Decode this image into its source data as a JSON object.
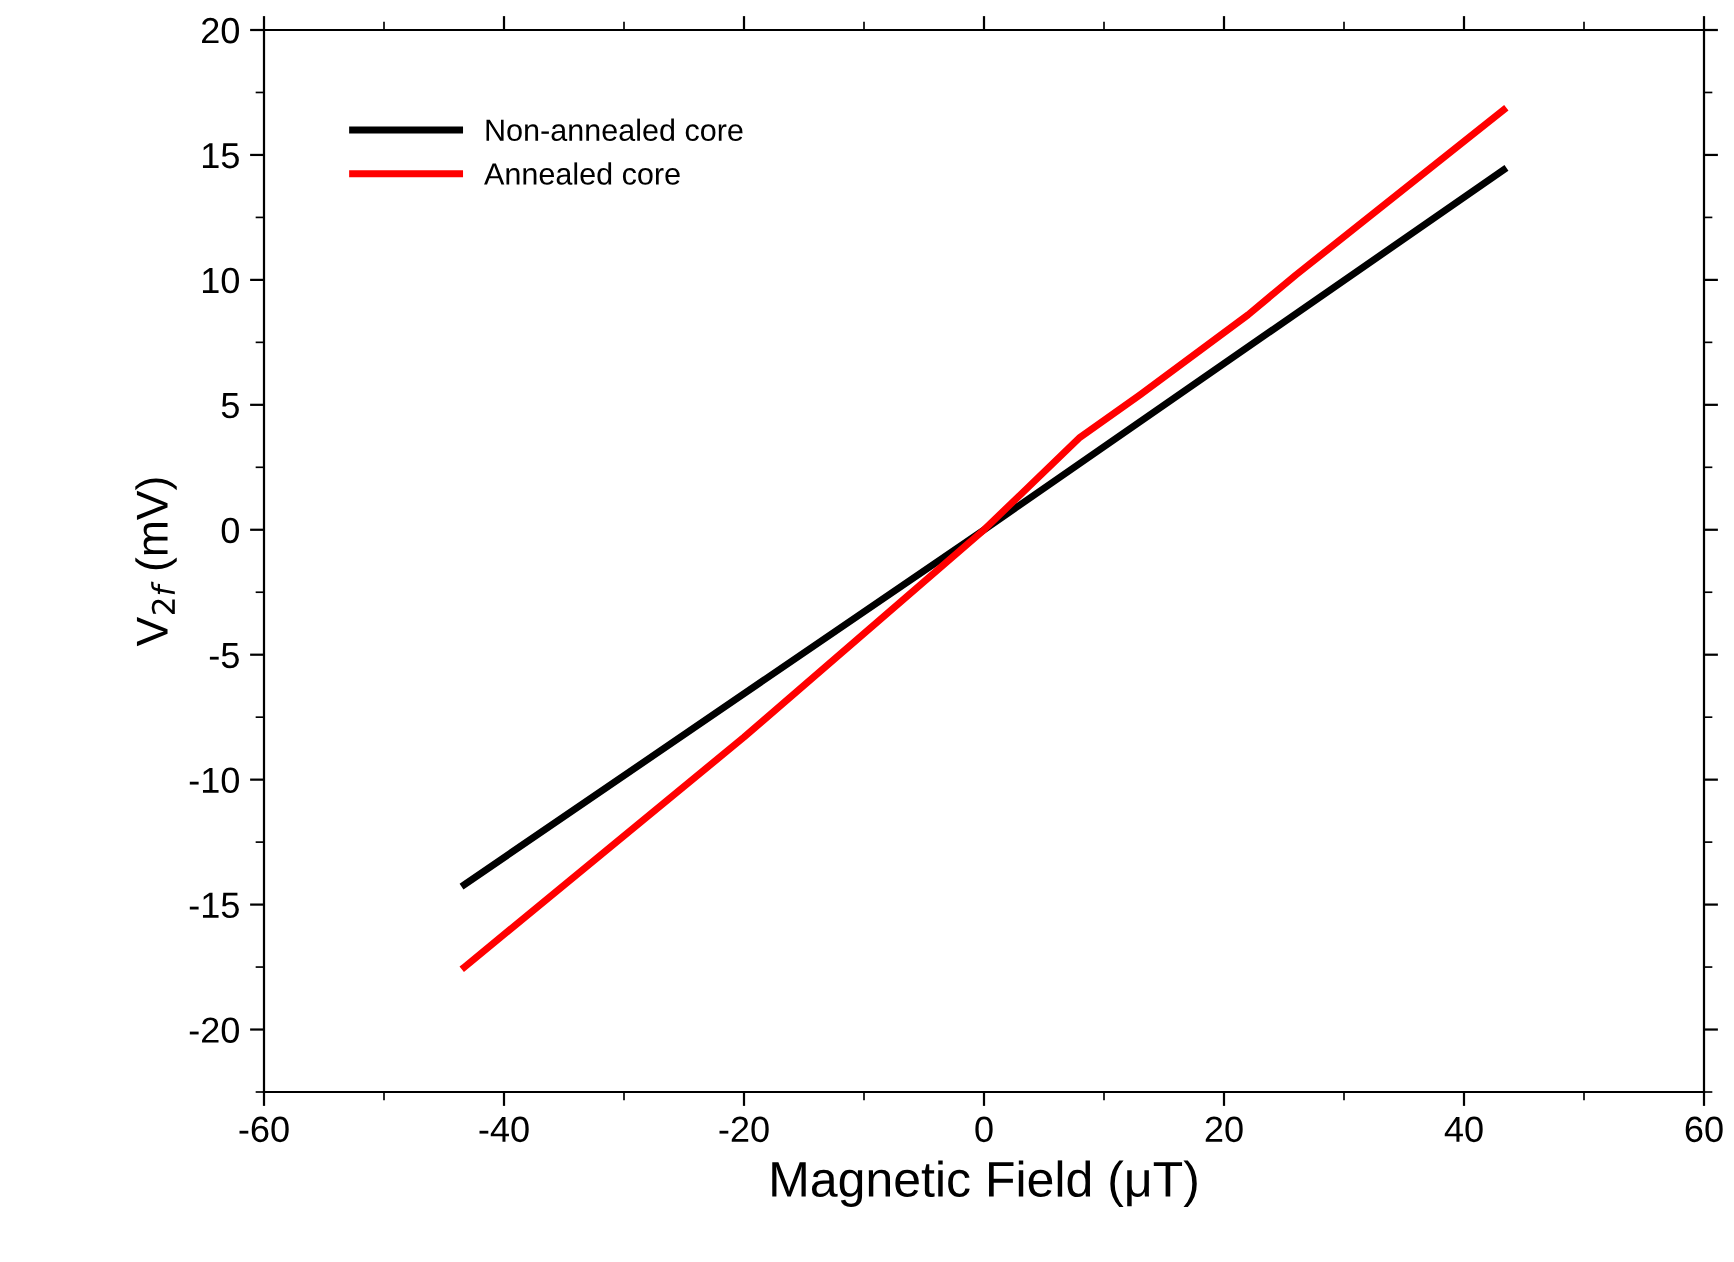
{
  "chart_data": {
    "type": "line",
    "xlabel": "Magnetic Field (μT)",
    "ylabel": "V$_{2f}$ (mV)",
    "xlim": [
      -60,
      60
    ],
    "xticks": [
      -60,
      -40,
      -20,
      0,
      20,
      40,
      60
    ],
    "ylim": [
      -22.5,
      20
    ],
    "yticks": [
      -20,
      -15,
      -10,
      -5,
      0,
      5,
      10,
      15,
      20
    ],
    "grid": false,
    "legend": "top left",
    "series": [
      {
        "name": "Non-annealed core",
        "color": "#000000",
        "x": [
          -43.3,
          0,
          43.3
        ],
        "values": [
          -14.2,
          0,
          14.4
        ]
      },
      {
        "name": "Annealed core",
        "color": "#ff0000",
        "x": [
          -43.3,
          -20,
          0,
          8,
          13,
          22,
          26,
          43.3
        ],
        "values": [
          -17.5,
          -8.3,
          0,
          3.7,
          5.4,
          8.6,
          10.2,
          16.8
        ]
      }
    ]
  }
}
